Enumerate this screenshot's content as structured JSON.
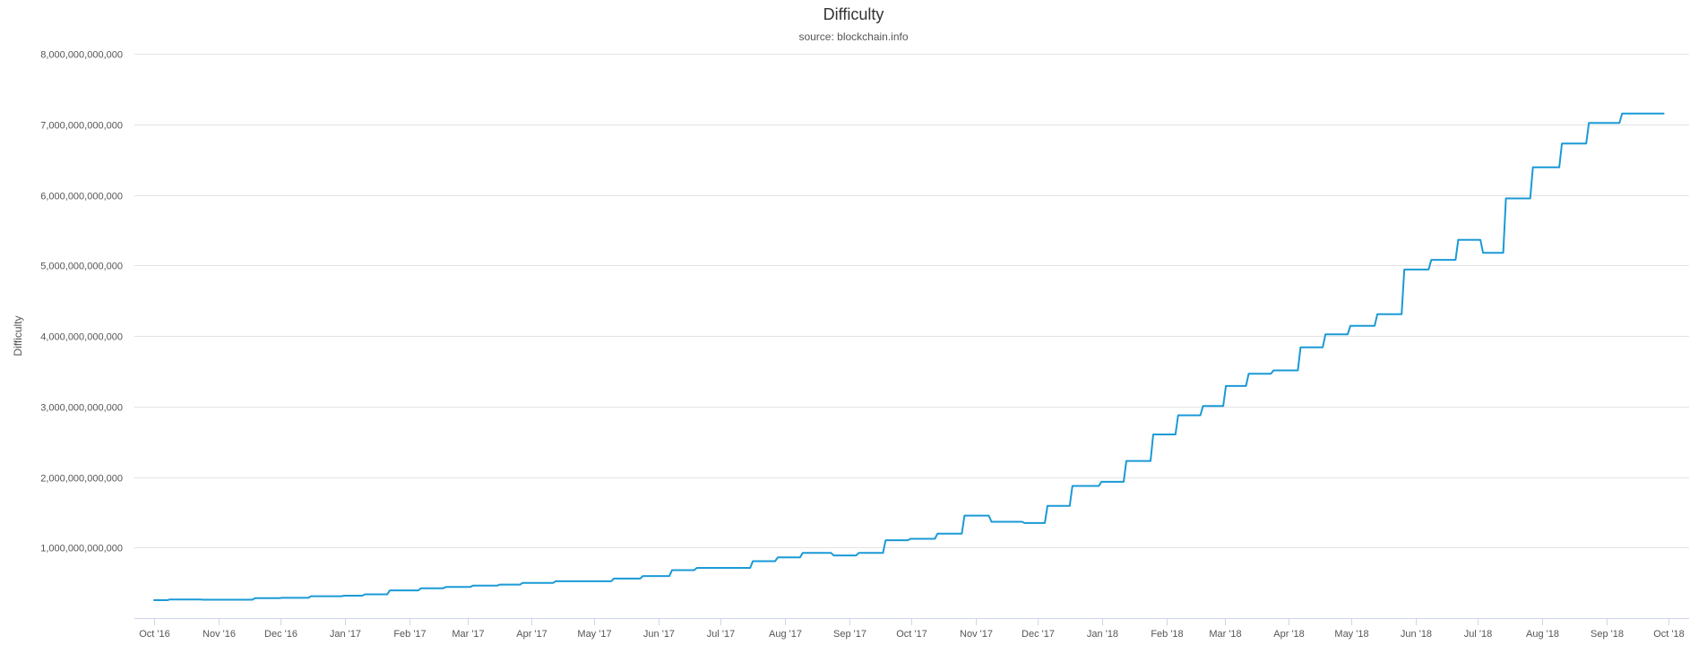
{
  "chart_data": {
    "type": "line",
    "title": "Difficulty",
    "subtitle": "source: blockchain.info",
    "xlabel": "",
    "ylabel": "Difficulty",
    "ylim": [
      0,
      8000000000000
    ],
    "y_ticks": [
      1000000000000,
      2000000000000,
      3000000000000,
      4000000000000,
      5000000000000,
      6000000000000,
      7000000000000,
      8000000000000
    ],
    "y_tick_labels": [
      "1,000,000,000,000",
      "2,000,000,000,000",
      "3,000,000,000,000",
      "4,000,000,000,000",
      "5,000,000,000,000",
      "6,000,000,000,000",
      "7,000,000,000,000",
      "8,000,000,000,000"
    ],
    "xlim": [
      "2016-10-01",
      "2018-10-01"
    ],
    "x_ticks": [
      "2016-10-01",
      "2016-11-01",
      "2016-12-01",
      "2017-01-01",
      "2017-02-01",
      "2017-03-01",
      "2017-04-01",
      "2017-05-01",
      "2017-06-01",
      "2017-07-01",
      "2017-08-01",
      "2017-09-01",
      "2017-10-01",
      "2017-11-01",
      "2017-12-01",
      "2018-01-01",
      "2018-02-01",
      "2018-03-01",
      "2018-04-01",
      "2018-05-01",
      "2018-06-01",
      "2018-07-01",
      "2018-08-01",
      "2018-09-01",
      "2018-10-01"
    ],
    "x_tick_labels": [
      "Oct '16",
      "Nov '16",
      "Dec '16",
      "Jan '17",
      "Feb '17",
      "Mar '17",
      "Apr '17",
      "May '17",
      "Jun '17",
      "Jul '17",
      "Aug '17",
      "Sep '17",
      "Oct '17",
      "Nov '17",
      "Dec '17",
      "Jan '18",
      "Feb '18",
      "Mar '18",
      "Apr '18",
      "May '18",
      "Jun '18",
      "Jul '18",
      "Aug '18",
      "Sep '18",
      "Oct '18"
    ],
    "grid": true,
    "legend": "none",
    "series_color": "#1a9ad6",
    "series": [
      {
        "steps": [
          [
            "2016-10-01",
            253600000000
          ],
          [
            "2016-10-08",
            263800000000
          ],
          [
            "2016-10-24",
            260000000000
          ],
          [
            "2016-11-18",
            281600000000
          ],
          [
            "2016-12-01",
            286800000000
          ],
          [
            "2016-12-15",
            310000000000
          ],
          [
            "2016-12-31",
            317700000000
          ],
          [
            "2017-01-10",
            336000000000
          ],
          [
            "2017-01-22",
            392900000000
          ],
          [
            "2017-02-06",
            422900000000
          ],
          [
            "2017-02-18",
            440700000000
          ],
          [
            "2017-03-03",
            460100000000
          ],
          [
            "2017-03-16",
            475000000000
          ],
          [
            "2017-03-27",
            499600000000
          ],
          [
            "2017-04-12",
            521900000000
          ],
          [
            "2017-04-27",
            521900000000
          ],
          [
            "2017-05-10",
            559970000000
          ],
          [
            "2017-05-24",
            596000000000
          ],
          [
            "2017-06-07",
            678760000000
          ],
          [
            "2017-06-19",
            711700000000
          ],
          [
            "2017-07-16",
            805900000000
          ],
          [
            "2017-07-28",
            860200000000
          ],
          [
            "2017-08-09",
            923200000000
          ],
          [
            "2017-08-24",
            888200000000
          ],
          [
            "2017-09-05",
            922700000000
          ],
          [
            "2017-09-18",
            1103400000000
          ],
          [
            "2017-09-30",
            1123900000000
          ],
          [
            "2017-10-13",
            1196900000000
          ],
          [
            "2017-10-26",
            1452800000000
          ],
          [
            "2017-11-08",
            1364500000000
          ],
          [
            "2017-11-24",
            1347000000000
          ],
          [
            "2017-12-05",
            1590900000000
          ],
          [
            "2017-12-17",
            1873100000000
          ],
          [
            "2017-12-31",
            1931100000000
          ],
          [
            "2018-01-12",
            2227800000000
          ],
          [
            "2018-01-25",
            2603000000000
          ],
          [
            "2018-02-06",
            2874400000000
          ],
          [
            "2018-02-18",
            3007400000000
          ],
          [
            "2018-03-01",
            3290600000000
          ],
          [
            "2018-03-12",
            3462500000000
          ],
          [
            "2018-03-24",
            3511600000000
          ],
          [
            "2018-04-06",
            3839100000000
          ],
          [
            "2018-04-18",
            4022100000000
          ],
          [
            "2018-04-30",
            4143000000000
          ],
          [
            "2018-05-13",
            4306900000000
          ],
          [
            "2018-05-26",
            4940600000000
          ],
          [
            "2018-06-08",
            5077500000000
          ],
          [
            "2018-06-21",
            5363100000000
          ],
          [
            "2018-07-03",
            5178500000000
          ],
          [
            "2018-07-14",
            5949500000000
          ],
          [
            "2018-07-27",
            6389300000000
          ],
          [
            "2018-08-10",
            6727200000000
          ],
          [
            "2018-08-23",
            7019800000000
          ],
          [
            "2018-09-08",
            7152600000000
          ],
          [
            "2018-09-28",
            7152600000000
          ]
        ]
      }
    ]
  }
}
